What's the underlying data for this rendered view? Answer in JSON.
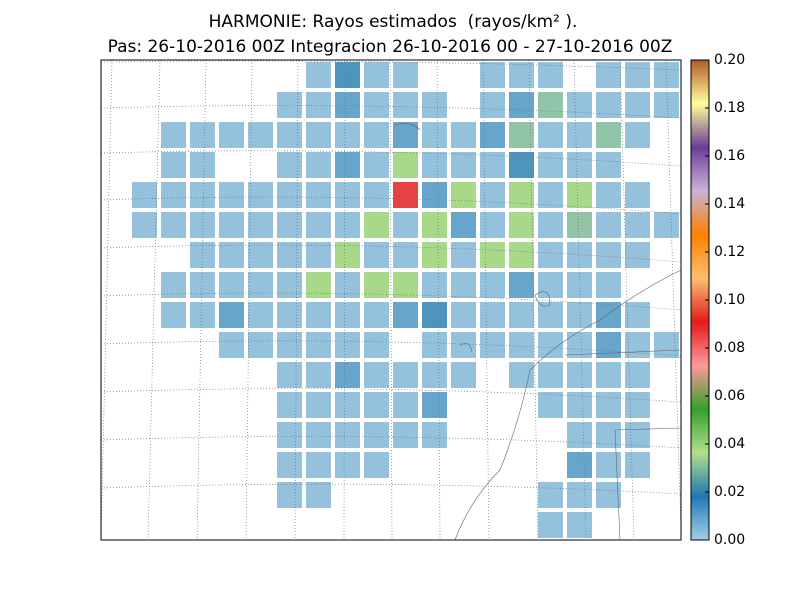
{
  "chart_data": {
    "type": "heatmap",
    "title": "HARMONIE: Rayos estimados  (rayos/km² ).",
    "subtitle": "Pas: 26-10-2016 00Z Integracion 26-10-2016 00 - 27-10-2016 00Z",
    "colormap": [
      "#a6cee3",
      "#1f78b4",
      "#b2df8a",
      "#33a02c",
      "#fb9a99",
      "#e31a1c",
      "#fdbf6f",
      "#ff7f00",
      "#cab2d6",
      "#6a3d9a",
      "#ffff99",
      "#b15928"
    ],
    "clim": [
      0,
      0.2
    ],
    "cticks": [
      {
        "value": 0,
        "label": "0.00"
      },
      {
        "value": 0.02,
        "label": "0.02"
      },
      {
        "value": 0.04,
        "label": "0.04"
      },
      {
        "value": 0.06,
        "label": "0.06"
      },
      {
        "value": 0.08,
        "label": "0.08"
      },
      {
        "value": 0.1,
        "label": "0.10"
      },
      {
        "value": 0.12,
        "label": "0.12"
      },
      {
        "value": 0.14,
        "label": "0.14"
      },
      {
        "value": 0.16,
        "label": "0.16"
      },
      {
        "value": 0.18,
        "label": "0.18"
      },
      {
        "value": 0.2,
        "label": "0.20"
      }
    ],
    "field": [
      [
        null,
        null,
        null,
        null,
        null,
        null,
        null,
        0.005,
        0.02,
        0.005,
        0.005,
        null,
        null,
        0.005,
        0.005,
        0.005,
        null,
        0.005,
        0.005,
        0.005
      ],
      [
        null,
        null,
        null,
        null,
        null,
        null,
        0.005,
        0.005,
        0.012,
        0.005,
        0.005,
        0.005,
        null,
        0.005,
        0.012,
        0.03,
        0.005,
        0.005,
        0.005,
        0.005
      ],
      [
        null,
        null,
        0.005,
        0.005,
        0.005,
        0.005,
        0.005,
        0.005,
        0.005,
        0.005,
        0.012,
        0.005,
        0.005,
        0.012,
        0.03,
        0.005,
        0.005,
        0.03,
        0.005,
        null
      ],
      [
        null,
        null,
        0.005,
        0.005,
        null,
        null,
        0.005,
        0.005,
        0.012,
        0.005,
        0.04,
        0.005,
        0.005,
        0.005,
        0.02,
        0.005,
        0.005,
        0.005,
        null,
        null
      ],
      [
        null,
        0.005,
        0.005,
        0.005,
        0.005,
        0.005,
        0.005,
        0.005,
        0.005,
        0.005,
        0.09,
        0.012,
        0.04,
        0.005,
        0.04,
        0.005,
        0.04,
        0.005,
        0.005,
        null
      ],
      [
        null,
        0.005,
        0.005,
        0.005,
        0.005,
        0.005,
        0.005,
        0.005,
        0.005,
        0.04,
        0.005,
        0.04,
        0.012,
        0.005,
        0.04,
        0.005,
        0.03,
        0.005,
        0.005,
        0.005
      ],
      [
        null,
        null,
        null,
        0.005,
        0.005,
        0.005,
        0.005,
        0.005,
        0.04,
        0.005,
        0.005,
        0.04,
        0.005,
        0.04,
        0.04,
        0.005,
        0.005,
        0.005,
        0.005,
        null
      ],
      [
        null,
        null,
        0.005,
        0.005,
        0.005,
        0.005,
        0.005,
        0.04,
        0.005,
        0.04,
        0.04,
        0.005,
        0.005,
        0.005,
        0.012,
        0.005,
        0.005,
        0.005,
        null,
        null
      ],
      [
        null,
        null,
        0.005,
        0.005,
        0.012,
        0.005,
        0.005,
        0.005,
        0.005,
        0.005,
        0.012,
        0.02,
        0.005,
        0.005,
        0.005,
        0.005,
        0.005,
        0.012,
        0.005,
        null
      ],
      [
        null,
        null,
        null,
        null,
        0.005,
        0.005,
        0.005,
        0.005,
        0.005,
        0.005,
        null,
        0.005,
        0.005,
        0.005,
        0.005,
        0.005,
        0.005,
        0.012,
        0.005,
        0.005
      ],
      [
        null,
        null,
        null,
        null,
        null,
        null,
        0.005,
        0.005,
        0.012,
        0.005,
        0.005,
        0.005,
        0.005,
        null,
        0.005,
        0.005,
        0.005,
        0.005,
        0.005,
        null
      ],
      [
        null,
        null,
        null,
        null,
        null,
        null,
        0.005,
        0.005,
        0.005,
        0.005,
        0.005,
        0.012,
        null,
        null,
        null,
        0.005,
        0.005,
        0.005,
        0.005,
        null
      ],
      [
        null,
        null,
        null,
        null,
        null,
        null,
        0.005,
        0.005,
        0.005,
        0.005,
        0.005,
        0.005,
        null,
        null,
        null,
        null,
        0.005,
        0.005,
        0.005,
        null
      ],
      [
        null,
        null,
        null,
        null,
        null,
        null,
        0.005,
        0.005,
        0.005,
        0.005,
        null,
        null,
        null,
        null,
        null,
        null,
        0.012,
        0.005,
        0.005,
        null
      ],
      [
        null,
        null,
        null,
        null,
        null,
        null,
        0.005,
        0.005,
        null,
        null,
        null,
        null,
        null,
        null,
        null,
        0.005,
        0.005,
        0.005,
        null,
        null
      ],
      [
        null,
        null,
        null,
        null,
        null,
        null,
        null,
        null,
        null,
        null,
        null,
        null,
        null,
        null,
        null,
        0.005,
        0.005,
        null,
        null,
        null
      ]
    ]
  }
}
